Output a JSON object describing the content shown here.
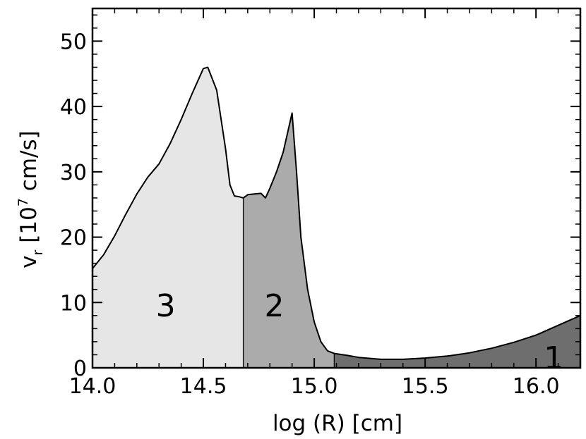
{
  "chart_data": {
    "type": "area",
    "title": "",
    "xlabel": "log (R) [cm]",
    "ylabel": {
      "main": "v",
      "subscript": "r",
      "rest_prefix": " [10",
      "exponent": "7",
      "rest_suffix": " cm/s]"
    },
    "xlim": [
      14.0,
      16.2
    ],
    "ylim": [
      0,
      55
    ],
    "x_ticks": [
      14.0,
      14.5,
      15.0,
      15.5,
      16.0
    ],
    "x_tick_labels": [
      "14.0",
      "14.5",
      "15.0",
      "15.5",
      "16.0"
    ],
    "y_ticks": [
      0,
      10,
      20,
      30,
      40,
      50
    ],
    "y_tick_labels": [
      "0",
      "10",
      "20",
      "30",
      "40",
      "50"
    ],
    "grid": false,
    "colors": {
      "region_3": "#e6e6e6",
      "region_2": "#ababab",
      "region_1": "#6e6e6e",
      "line": "#000000"
    },
    "regions": [
      {
        "label": "3",
        "label_pos": [
          14.33,
          9.5
        ],
        "x": [
          14.0,
          14.05,
          14.1,
          14.15,
          14.2,
          14.25,
          14.3,
          14.35,
          14.4,
          14.45,
          14.5,
          14.52,
          14.56,
          14.6,
          14.62,
          14.64,
          14.66,
          14.68
        ],
        "y": [
          15.2,
          17.3,
          20.2,
          23.5,
          26.6,
          29.2,
          31.2,
          34.3,
          38.0,
          42.0,
          45.8,
          46.0,
          42.5,
          33.5,
          28.0,
          26.3,
          26.2,
          26.0
        ]
      },
      {
        "label": "2",
        "label_pos": [
          14.82,
          9.5
        ],
        "x": [
          14.68,
          14.7,
          14.73,
          14.76,
          14.78,
          14.8,
          14.83,
          14.86,
          14.88,
          14.9,
          14.92,
          14.94,
          14.97,
          15.0,
          15.03,
          15.06,
          15.09
        ],
        "y": [
          26.0,
          26.5,
          26.6,
          26.7,
          26.0,
          27.5,
          30.0,
          33.0,
          36.0,
          39.0,
          30.0,
          20.0,
          12.0,
          7.0,
          4.0,
          2.6,
          2.2
        ]
      },
      {
        "label": "1",
        "label_pos": [
          16.08,
          1.5
        ],
        "x": [
          15.09,
          15.15,
          15.2,
          15.3,
          15.4,
          15.5,
          15.6,
          15.7,
          15.8,
          15.9,
          16.0,
          16.1,
          16.2
        ],
        "y": [
          2.2,
          1.9,
          1.6,
          1.3,
          1.3,
          1.5,
          1.8,
          2.3,
          3.0,
          3.9,
          5.0,
          6.5,
          8.0
        ]
      }
    ]
  }
}
